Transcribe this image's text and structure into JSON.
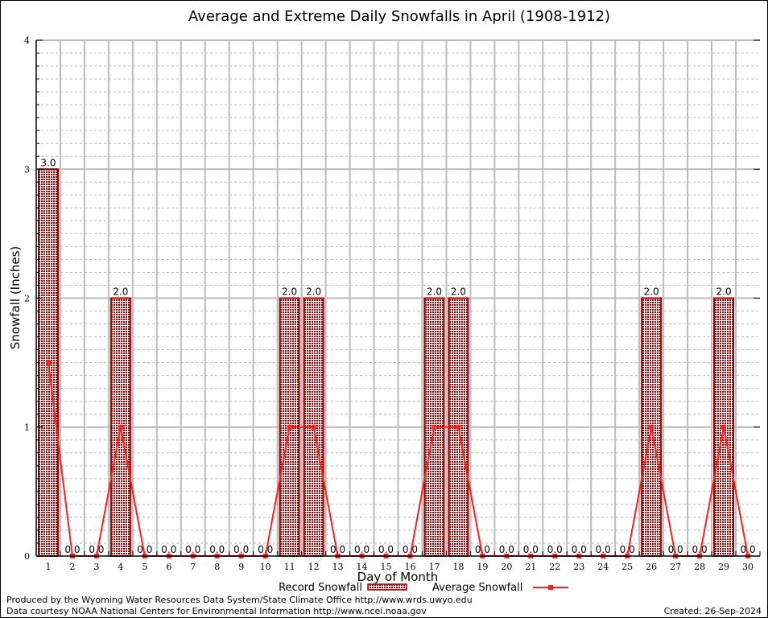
{
  "chart_data": {
    "type": "bar",
    "title": "Average and Extreme Daily Snowfalls in April (1908-1912)",
    "xlabel": "Day of Month",
    "ylabel": "Snowfall (Inches)",
    "ylim": [
      0,
      4
    ],
    "yticks": [
      "0",
      "1",
      "2",
      "3",
      "4"
    ],
    "grid": true,
    "categories": [
      "1",
      "2",
      "3",
      "4",
      "5",
      "6",
      "7",
      "8",
      "9",
      "10",
      "11",
      "12",
      "13",
      "14",
      "15",
      "16",
      "17",
      "18",
      "19",
      "20",
      "21",
      "22",
      "23",
      "24",
      "25",
      "26",
      "27",
      "28",
      "29",
      "30"
    ],
    "series": [
      {
        "name": "Record Snowfall",
        "type": "bar",
        "color": "#a00000",
        "values": [
          3.0,
          0,
          0,
          2.0,
          0,
          0,
          0,
          0,
          0,
          0,
          2.0,
          2.0,
          0,
          0,
          0,
          0,
          2.0,
          2.0,
          0,
          0,
          0,
          0,
          0,
          0,
          0,
          2.0,
          0,
          0,
          2.0,
          0
        ],
        "labels": [
          "3.0",
          "0.0",
          "0.0",
          "2.0",
          "0.0",
          "0.0",
          "0.0",
          "0.0",
          "0.0",
          "0.0",
          "2.0",
          "2.0",
          "0.0",
          "0.0",
          "0.0",
          "0.0",
          "2.0",
          "2.0",
          "0.0",
          "0.0",
          "0.0",
          "0.0",
          "0.0",
          "0.0",
          "0.0",
          "2.0",
          "0.0",
          "0.0",
          "2.0",
          "0.0"
        ]
      },
      {
        "name": "Average Snowfall",
        "type": "line",
        "color": "#ff2020",
        "values": [
          1.5,
          0,
          0,
          1.0,
          0,
          0,
          0,
          0,
          0,
          0,
          1.0,
          1.0,
          0,
          0,
          0,
          0,
          1.0,
          1.0,
          0,
          0,
          0,
          0,
          0,
          0,
          0,
          1.0,
          0,
          0,
          1.0,
          0
        ]
      }
    ],
    "legend_placement": "bottom"
  },
  "footer": {
    "produced_by": "Produced by the Wyoming Water Resources Data System/State Climate Office http://www.wrds.uwyo.edu",
    "data_courtesy": "Data courtesy NOAA National Centers for Environmental Information http://www.ncei.noaa.gov",
    "created": "Created:  26-Sep-2024"
  }
}
